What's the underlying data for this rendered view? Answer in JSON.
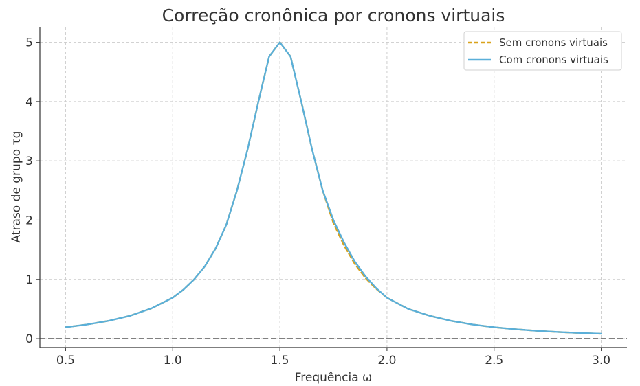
{
  "chart_data": {
    "type": "line",
    "title": "Correção cronônica por cronons virtuais",
    "xlabel": "Frequência ω",
    "ylabel": "Atraso de grupo τg",
    "xlim": [
      0.38,
      3.12
    ],
    "ylim": [
      -0.15,
      5.25
    ],
    "xticks": [
      0.5,
      1.0,
      1.5,
      2.0,
      2.5,
      3.0
    ],
    "xtick_labels": [
      "0.5",
      "1.0",
      "1.5",
      "2.0",
      "2.5",
      "3.0"
    ],
    "yticks": [
      0,
      1,
      2,
      3,
      4,
      5
    ],
    "ytick_labels": [
      "0",
      "1",
      "2",
      "3",
      "4",
      "5"
    ],
    "grid": true,
    "legend_position": "top-right",
    "reference_line": {
      "y": 0,
      "style": "dashed",
      "color": "#808080"
    },
    "series": [
      {
        "name": "Sem cronons virtuais",
        "style": "dashed",
        "color": "#d9a21b",
        "x": [
          0.5,
          0.6,
          0.7,
          0.8,
          0.9,
          1.0,
          1.05,
          1.1,
          1.15,
          1.2,
          1.25,
          1.3,
          1.35,
          1.4,
          1.45,
          1.5,
          1.55,
          1.6,
          1.65,
          1.7,
          1.75,
          1.8,
          1.85,
          1.9,
          1.95,
          2.0,
          2.1,
          2.2,
          2.3,
          2.4,
          2.5,
          2.6,
          2.7,
          2.8,
          2.9,
          3.0
        ],
        "y": [
          0.192,
          0.238,
          0.3,
          0.385,
          0.51,
          0.69,
          0.826,
          1.0,
          1.22,
          1.52,
          1.92,
          2.5,
          3.2,
          4.0,
          4.76,
          5.0,
          4.76,
          4.0,
          3.2,
          2.5,
          1.95,
          1.57,
          1.26,
          1.02,
          0.84,
          0.69,
          0.5,
          0.385,
          0.3,
          0.238,
          0.192,
          0.158,
          0.132,
          0.111,
          0.095,
          0.082
        ]
      },
      {
        "name": "Com cronons virtuais",
        "style": "solid",
        "color": "#5aafd9",
        "x": [
          0.5,
          0.6,
          0.7,
          0.8,
          0.9,
          1.0,
          1.05,
          1.1,
          1.15,
          1.2,
          1.25,
          1.3,
          1.35,
          1.4,
          1.45,
          1.5,
          1.55,
          1.6,
          1.65,
          1.7,
          1.75,
          1.8,
          1.85,
          1.9,
          1.95,
          2.0,
          2.1,
          2.2,
          2.3,
          2.4,
          2.5,
          2.6,
          2.7,
          2.8,
          2.9,
          3.0
        ],
        "y": [
          0.192,
          0.238,
          0.3,
          0.385,
          0.51,
          0.69,
          0.826,
          1.0,
          1.22,
          1.52,
          1.92,
          2.5,
          3.2,
          4.0,
          4.76,
          5.0,
          4.76,
          4.0,
          3.2,
          2.5,
          2.0,
          1.62,
          1.3,
          1.05,
          0.85,
          0.69,
          0.5,
          0.385,
          0.3,
          0.238,
          0.192,
          0.158,
          0.132,
          0.111,
          0.095,
          0.082
        ]
      }
    ]
  }
}
